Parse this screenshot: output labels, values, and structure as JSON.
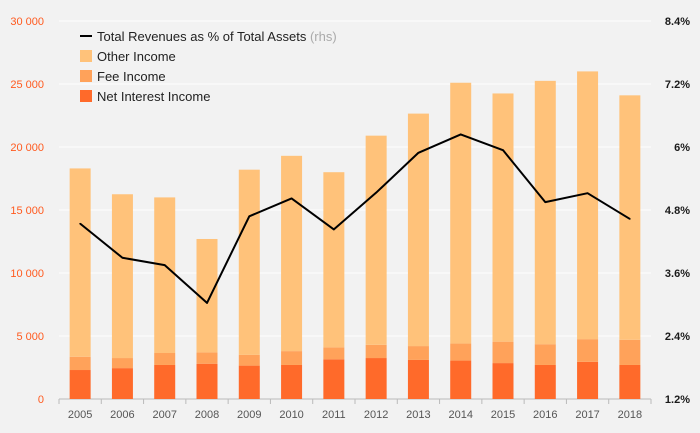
{
  "chart_data": {
    "type": "bar",
    "stacked": true,
    "categories": [
      "2005",
      "2006",
      "2007",
      "2008",
      "2009",
      "2010",
      "2011",
      "2012",
      "2013",
      "2014",
      "2015",
      "2016",
      "2017",
      "2018"
    ],
    "series": [
      {
        "name": "Net Interest Income",
        "color": "#ff6a2a",
        "values": [
          2300,
          2450,
          2700,
          2800,
          2650,
          2700,
          3150,
          3250,
          3100,
          3050,
          2850,
          2700,
          2950,
          2700
        ]
      },
      {
        "name": "Fee Income",
        "color": "#ffa25a",
        "values": [
          1050,
          800,
          950,
          900,
          850,
          1100,
          950,
          1050,
          1100,
          1350,
          1700,
          1650,
          1800,
          2000
        ]
      },
      {
        "name": "Other Income",
        "color": "#ffc27a",
        "values": [
          14950,
          13000,
          12350,
          9000,
          14700,
          15500,
          13900,
          16600,
          18450,
          20700,
          19700,
          20900,
          21250,
          19400
        ]
      }
    ],
    "line_series": {
      "name": "Total Revenues as % of Total Assets",
      "name_suffix": "(rhs)",
      "color": "#000000",
      "axis": "right",
      "values": [
        4.54,
        3.89,
        3.75,
        3.03,
        4.68,
        5.02,
        4.43,
        5.13,
        5.89,
        6.24,
        5.94,
        4.95,
        5.12,
        4.63
      ]
    },
    "y_left": {
      "min": 0,
      "max": 30000,
      "ticks": [
        0,
        5000,
        10000,
        15000,
        20000,
        25000,
        30000
      ],
      "tick_labels": [
        "0",
        "5 000",
        "10 000",
        "15 000",
        "20 000",
        "25 000",
        "30 000"
      ],
      "color": "#ff5a1f"
    },
    "y_right": {
      "min": 1.2,
      "max": 8.4,
      "ticks": [
        1.2,
        2.4,
        3.6,
        4.8,
        6,
        7.2,
        8.4
      ],
      "tick_labels": [
        "1.2%",
        "2.4%",
        "3.6%",
        "4.8%",
        "6%",
        "7.2%",
        "8.4%"
      ]
    },
    "grid": true,
    "legend_position": "top-left",
    "legend_order": [
      "line",
      "Other Income",
      "Fee Income",
      "Net Interest Income"
    ],
    "title": "",
    "xlabel": "",
    "ylabel": ""
  }
}
